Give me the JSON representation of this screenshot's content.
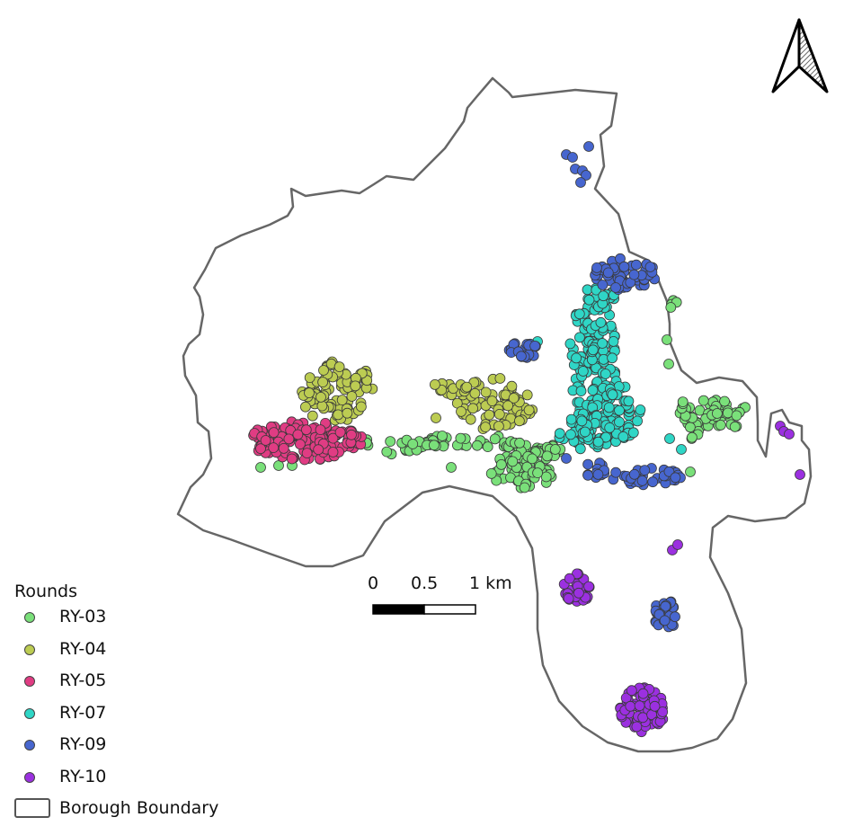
{
  "legend": {
    "title": "Rounds",
    "items": [
      {
        "label": "RY-03",
        "color": "#7ae07a"
      },
      {
        "label": "RY-04",
        "color": "#bccc52"
      },
      {
        "label": "RY-05",
        "color": "#e03c83"
      },
      {
        "label": "RY-07",
        "color": "#2fd6c6"
      },
      {
        "label": "RY-09",
        "color": "#4766cf"
      },
      {
        "label": "RY-10",
        "color": "#9b30e0"
      }
    ],
    "boundary_label": "Borough Boundary"
  },
  "scale_bar": {
    "labels": [
      "0",
      "0.5",
      "1 km"
    ]
  },
  "north_arrow": {
    "icon": "north-arrow-icon"
  },
  "boundary_color": "#666666"
}
